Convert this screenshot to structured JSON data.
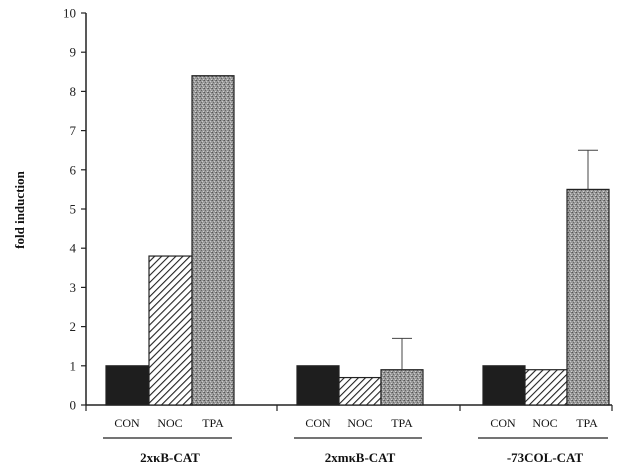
{
  "chart_data": {
    "type": "bar",
    "title": "",
    "ylabel": "fold induction",
    "xlabel": "",
    "ylim": [
      0,
      10
    ],
    "yticks": [
      "0",
      "1",
      "2",
      "3",
      "4",
      "5",
      "6",
      "7",
      "8",
      "9",
      "10"
    ],
    "grid": false,
    "groups": [
      {
        "name": "2xκB-CAT",
        "bars": [
          {
            "label": "CON",
            "value": 1.0,
            "error": null,
            "pattern": "solid"
          },
          {
            "label": "NOC",
            "value": 3.8,
            "error": null,
            "pattern": "hatch"
          },
          {
            "label": "TPA",
            "value": 8.4,
            "error": null,
            "pattern": "stipple"
          }
        ]
      },
      {
        "name": "2xmκB-CAT",
        "bars": [
          {
            "label": "CON",
            "value": 1.0,
            "error": null,
            "pattern": "solid"
          },
          {
            "label": "NOC",
            "value": 0.7,
            "error": null,
            "pattern": "hatch"
          },
          {
            "label": "TPA",
            "value": 0.9,
            "error": 0.8,
            "pattern": "stipple"
          }
        ]
      },
      {
        "name": "-73COL-CAT",
        "bars": [
          {
            "label": "CON",
            "value": 1.0,
            "error": null,
            "pattern": "solid"
          },
          {
            "label": "NOC",
            "value": 0.9,
            "error": null,
            "pattern": "hatch"
          },
          {
            "label": "TPA",
            "value": 5.5,
            "error": 1.0,
            "pattern": "stipple"
          }
        ]
      }
    ],
    "colors": {
      "solid": "#1e1e1e",
      "hatch_line": "#222222",
      "stipple": "#8a8a8a",
      "axis": "#222222"
    }
  }
}
